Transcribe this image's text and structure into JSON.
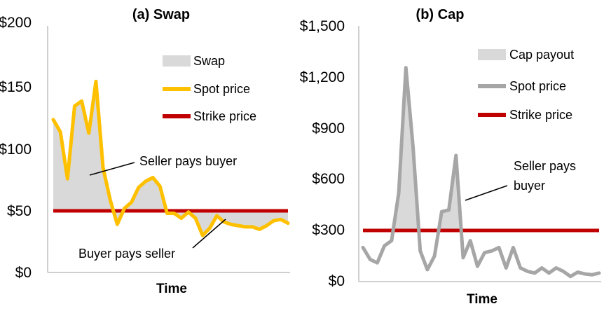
{
  "chart_data": [
    {
      "type": "line",
      "title": "(a) Swap",
      "xlabel": "Time",
      "ylabel": "",
      "ylim": [
        0,
        200
      ],
      "yticks": [
        "$0",
        "$50",
        "$100",
        "$150",
        "$200"
      ],
      "x": [
        1,
        2,
        3,
        4,
        5,
        6,
        7,
        8,
        9,
        10,
        11,
        12,
        13,
        14,
        15,
        16,
        17,
        18,
        19,
        20,
        21,
        22,
        23,
        24,
        25,
        26,
        27,
        28,
        29,
        30,
        31,
        32,
        33,
        34
      ],
      "series": [
        {
          "name": "Spot price",
          "color": "#FFC000",
          "values": [
            124,
            114,
            76,
            135,
            139,
            113,
            155,
            85,
            59,
            39,
            52,
            57,
            69,
            74,
            77,
            70,
            48,
            48,
            44,
            49,
            44,
            30,
            36,
            46,
            41,
            39,
            38,
            37,
            37,
            35,
            38,
            42,
            43,
            40
          ]
        },
        {
          "name": "Strike price",
          "color": "#C00000",
          "value": 50
        }
      ],
      "area": {
        "name": "Swap",
        "color": "#D9D9D9"
      },
      "legend": {
        "position": "top-right",
        "items": [
          "Swap",
          "Spot price",
          "Strike price"
        ]
      },
      "annotations": [
        "Seller pays buyer",
        "Buyer pays seller"
      ]
    },
    {
      "type": "line",
      "title": "(b) Cap",
      "xlabel": "Time",
      "ylabel": "",
      "ylim": [
        0,
        1500
      ],
      "yticks": [
        "$0",
        "$300",
        "$600",
        "$900",
        "$1,200",
        "$1,500"
      ],
      "x": [
        1,
        2,
        3,
        4,
        5,
        6,
        7,
        8,
        9,
        10,
        11,
        12,
        13,
        14,
        15,
        16,
        17,
        18,
        19,
        20,
        21,
        22,
        23,
        24,
        25,
        26,
        27,
        28,
        29,
        30,
        31,
        32,
        33,
        34
      ],
      "series": [
        {
          "name": "Spot price",
          "color": "#A6A6A6",
          "values": [
            200,
            130,
            110,
            210,
            240,
            520,
            1255,
            790,
            180,
            70,
            150,
            410,
            420,
            740,
            140,
            240,
            90,
            170,
            180,
            200,
            80,
            200,
            80,
            60,
            50,
            80,
            50,
            80,
            60,
            30,
            55,
            45,
            40,
            50
          ]
        },
        {
          "name": "Strike price",
          "color": "#C00000",
          "value": 300
        }
      ],
      "area": {
        "name": "Cap payout",
        "color": "#D9D9D9"
      },
      "legend": {
        "position": "top-right",
        "items": [
          "Cap payout",
          "Spot price",
          "Strike price"
        ]
      },
      "annotations": [
        "Seller pays buyer"
      ]
    }
  ]
}
